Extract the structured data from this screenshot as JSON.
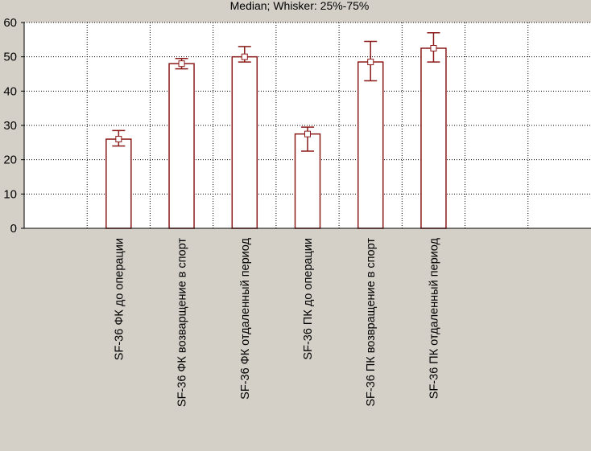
{
  "chart_data": {
    "type": "bar",
    "subtitle": "Median; Whisker: 25%-75%",
    "categories": [
      "",
      "SF-36 ФК до операции",
      "SF-36 ФК возварщение в спорт",
      "SF-36 ФК отдаленный период",
      "SF-36 ПК до операции",
      "SF-36 ПК возвращение в спорт",
      "SF-36 ПК отдаленный период",
      "",
      ""
    ],
    "series": [
      {
        "values": [
          null,
          26,
          48,
          50,
          27.5,
          48.5,
          52.5,
          null,
          null
        ],
        "whisker_low": [
          null,
          24,
          46.5,
          48.5,
          22.5,
          43,
          48.5,
          null,
          null
        ],
        "whisker_high": [
          null,
          28.5,
          49.5,
          53,
          29.5,
          54.5,
          57,
          null,
          null
        ]
      }
    ],
    "ylim": [
      0,
      60
    ],
    "yticks": [
      0,
      10,
      20,
      30,
      40,
      50,
      60
    ],
    "grid": true,
    "colors": {
      "background": "#d4d0c8",
      "plot": "#ffffff",
      "bar": "#8b1a1a",
      "grid": "#000000"
    }
  }
}
